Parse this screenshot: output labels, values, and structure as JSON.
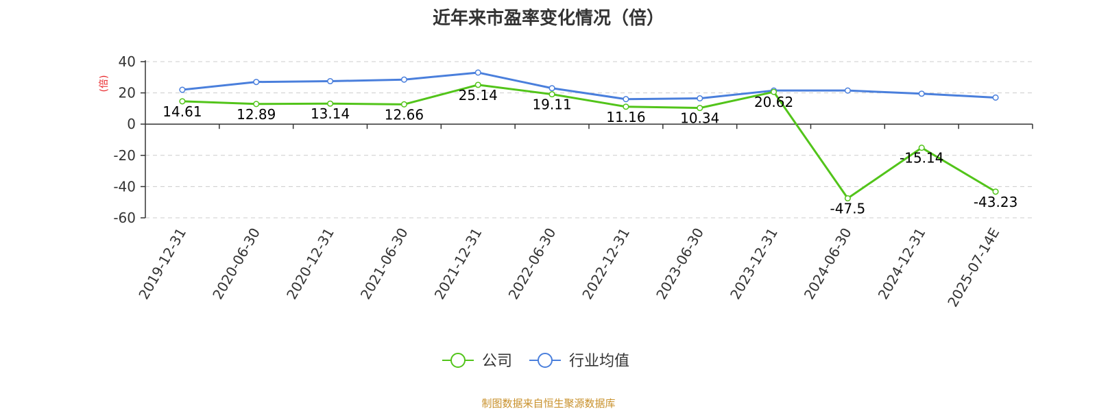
{
  "page": {
    "title": "近年来市盈率变化情况（倍）",
    "source": "制图数据来自恒生聚源数据库"
  },
  "chart_data": {
    "type": "line",
    "title": "近年来市盈率变化情况（倍）",
    "ylabel": "(倍)",
    "ylim": [
      -60,
      40
    ],
    "yticks": [
      40,
      20,
      0,
      -20,
      -40,
      -60
    ],
    "grid": true,
    "legend_position": "bottom",
    "categories": [
      "2019-12-31",
      "2020-06-30",
      "2020-12-31",
      "2021-06-30",
      "2021-12-31",
      "2022-06-30",
      "2022-12-31",
      "2023-06-30",
      "2023-12-31",
      "2024-06-30",
      "2024-12-31",
      "2025-07-14E"
    ],
    "series": [
      {
        "name": "公司",
        "color": "#52c41a",
        "values": [
          14.61,
          12.89,
          13.14,
          12.66,
          25.14,
          19.11,
          11.16,
          10.34,
          20.62,
          -47.5,
          -15.14,
          -43.23
        ],
        "labels": [
          "14.61",
          "12.89",
          "13.14",
          "12.66",
          "25.14",
          "19.11",
          "11.16",
          "10.34",
          "20.62",
          "-47.5",
          "-15.14",
          "-43.23"
        ]
      },
      {
        "name": "行业均值",
        "color": "#4a7fdc",
        "values": [
          22.0,
          27.0,
          27.5,
          28.5,
          33.0,
          23.0,
          16.0,
          16.5,
          21.5,
          21.5,
          19.5,
          17.0
        ]
      }
    ]
  },
  "colors": {
    "ylabel": "#e8262a",
    "grid": "#cccccc",
    "axis": "#333333",
    "source": "#c8902a"
  }
}
